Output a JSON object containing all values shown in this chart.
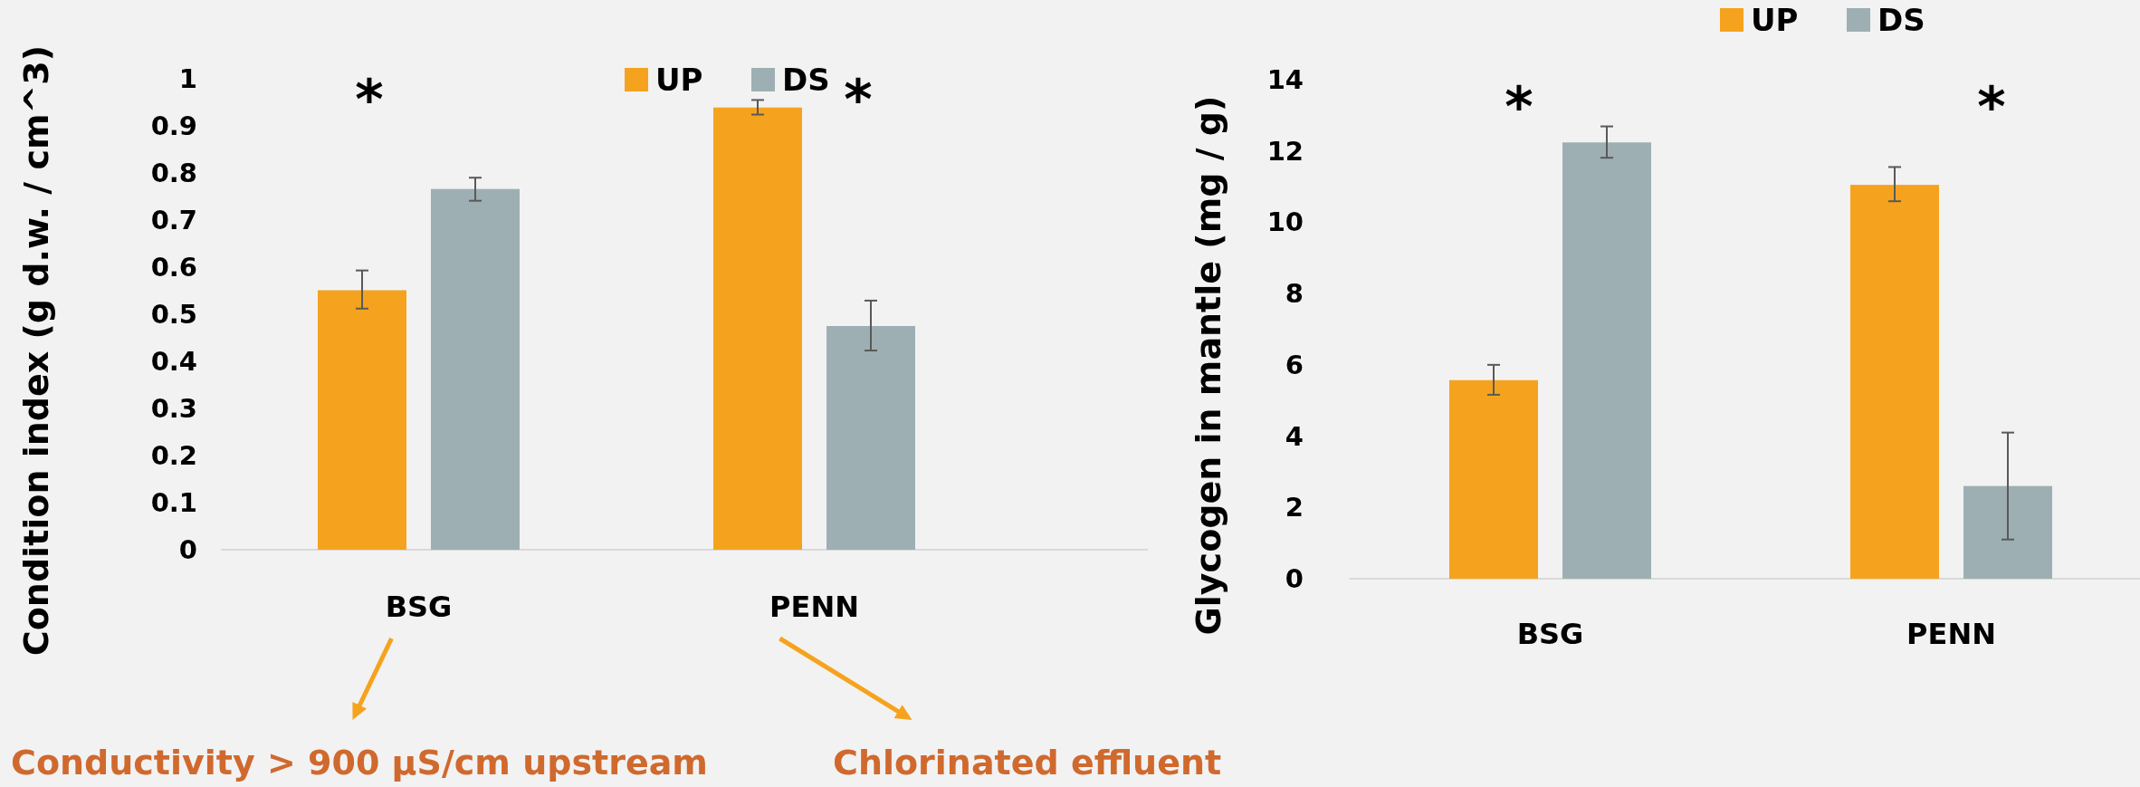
{
  "chart_data": [
    {
      "type": "bar",
      "ylabel": "Condition index (g d.w. / cm^3)",
      "categories": [
        "BSG",
        "PENN"
      ],
      "series": [
        {
          "name": "UP",
          "color": "#f5a31e",
          "values": [
            0.551,
            0.939
          ],
          "errors": [
            [
              0.512,
              0.593
            ],
            [
              0.924,
              0.955
            ]
          ]
        },
        {
          "name": "DS",
          "color": "#9eafb3",
          "values": [
            0.766,
            0.475
          ],
          "errors": [
            [
              0.741,
              0.79
            ],
            [
              0.423,
              0.529
            ]
          ]
        }
      ],
      "ylim": [
        0,
        1
      ],
      "yticks": [
        0,
        0.1,
        0.2,
        0.3,
        0.4,
        0.5,
        0.6,
        0.7,
        0.8,
        0.9,
        {
          "value": 1,
          "label": "1"
        }
      ],
      "grid": false,
      "legend": "top",
      "annotations": [
        "*",
        "*",
        "Conductivity > 900 μS/cm upstream",
        "Chlorinated effluent"
      ]
    },
    {
      "type": "bar",
      "ylabel": "Glycogen in mantle (mg / g)",
      "categories": [
        "BSG",
        "PENN"
      ],
      "series": [
        {
          "name": "UP",
          "color": "#f5a31e",
          "values": [
            5.57,
            11.05
          ],
          "errors": [
            [
              5.16,
              6.0
            ],
            [
              10.59,
              11.55
            ]
          ]
        },
        {
          "name": "DS",
          "color": "#9eafb3",
          "values": [
            12.24,
            2.6
          ],
          "errors": [
            [
              11.81,
              12.69
            ],
            [
              1.1,
              4.1
            ]
          ]
        }
      ],
      "ylim": [
        0,
        14
      ],
      "yticks": [
        0,
        2,
        4,
        6,
        8,
        10,
        12,
        14
      ],
      "grid": false,
      "legend": "top",
      "annotations": [
        "*",
        "*"
      ]
    }
  ]
}
